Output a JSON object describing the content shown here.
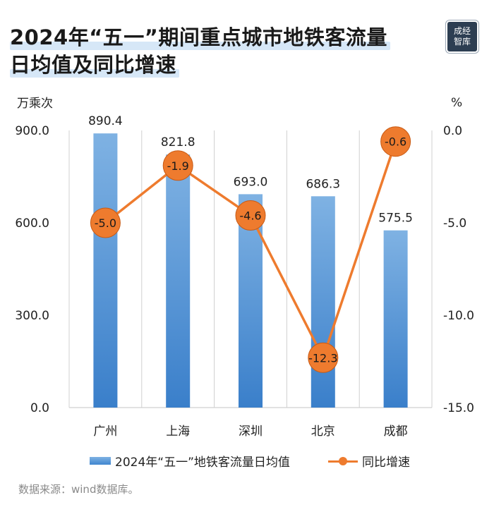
{
  "title_line1": "2024年“五一”期间重点城市地铁客流量",
  "title_line2": "日均值及同比增速",
  "logo_text": "成经智库",
  "source": "数据来源：wind数据库。",
  "colors": {
    "bar_top": "#7fb2e3",
    "bar_bottom": "#3a7fca",
    "line": "#ee7b2e",
    "grid": "#d0d0d0"
  },
  "chart_data": {
    "type": "bar",
    "categories": [
      "广州",
      "上海",
      "深圳",
      "北京",
      "成都"
    ],
    "series": [
      {
        "name": "2024年“五一”地铁客流量日均值",
        "type": "bar",
        "axis": "left",
        "values": [
          890.4,
          821.8,
          693.0,
          686.3,
          575.5
        ],
        "labels": [
          "890.4",
          "821.8",
          "693.0",
          "686.3",
          "575.5"
        ]
      },
      {
        "name": "同比增速",
        "type": "line",
        "axis": "right",
        "values": [
          -5.0,
          -1.9,
          -4.6,
          -12.3,
          -0.6
        ],
        "labels": [
          "-5.0",
          "-1.9",
          "-4.6",
          "-12.3",
          "-0.6"
        ]
      }
    ],
    "y_left": {
      "label": "万乘次",
      "range": [
        0,
        900
      ],
      "ticks": [
        "900.0",
        "600.0",
        "300.0",
        "0.0"
      ],
      "tick_values": [
        900,
        600,
        300,
        0
      ]
    },
    "y_right": {
      "label": "%",
      "range": [
        -15,
        0
      ],
      "ticks": [
        "0.0",
        "-5.0",
        "-10.0",
        "-15.0"
      ],
      "tick_values": [
        0,
        -5,
        -10,
        -15
      ]
    },
    "legend_position": "bottom"
  }
}
